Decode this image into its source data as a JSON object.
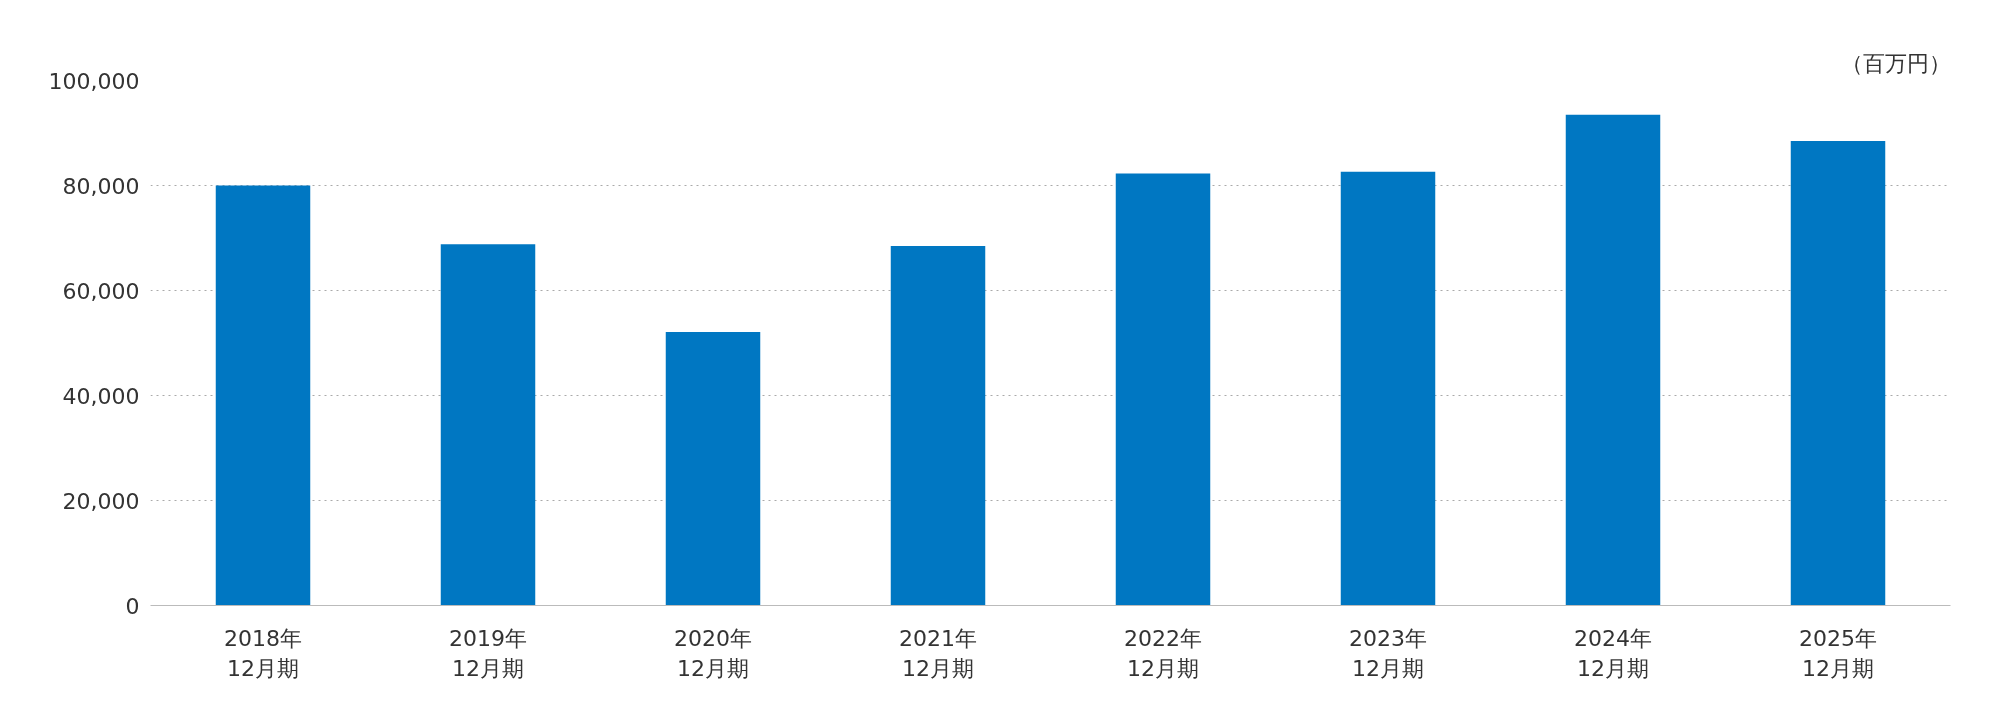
{
  "chart_data": {
    "type": "bar",
    "ylabel": "（百万円）",
    "categories": [
      "2018年\n12月期",
      "2019年\n12月期",
      "2020年\n12月期",
      "2021年\n12月期",
      "2022年\n12月期",
      "2023年\n12月期",
      "2024年\n12月期",
      "2025年\n12月期"
    ],
    "values": [
      80000,
      68800,
      52100,
      68500,
      82300,
      82600,
      93500,
      88500
    ],
    "color": "#0077c2",
    "ylim": [
      0,
      100000
    ],
    "yticks": [
      {
        "value": 0,
        "label": "0"
      },
      {
        "value": 20000,
        "label": "20,000"
      },
      {
        "value": 40000,
        "label": "40,000"
      },
      {
        "value": 60000,
        "label": "60,000"
      },
      {
        "value": 80000,
        "label": "80,000"
      },
      {
        "value": 100000,
        "label": "100,000"
      }
    ],
    "grid": "y"
  }
}
